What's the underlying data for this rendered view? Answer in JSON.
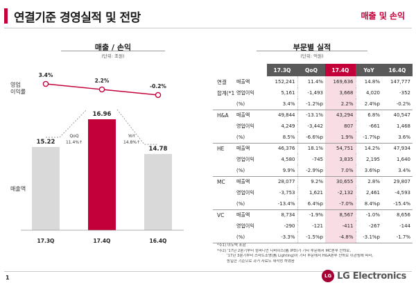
{
  "header": {
    "title": "연결기준 경영실적 및 전망",
    "subtitle": "매출 및 손익"
  },
  "left": {
    "heading": "매출 / 손익",
    "unit": "(단위: 조원)",
    "op_margin_label": "영업\n이익률",
    "revenue_label": "매출액",
    "qoq_label": "QoQ",
    "qoq_value": "11.4%↑",
    "yoy_label": "YoY",
    "yoy_value": "14.8%↑"
  },
  "right": {
    "heading": "부문별 실적",
    "unit": "(단위: 억원)",
    "columns": [
      "17.3Q",
      "QoQ",
      "17.4Q",
      "YoY",
      "16.4Q"
    ],
    "groups": [
      {
        "segment": [
          "연결",
          "합계(*1)"
        ],
        "rows": [
          [
            "매출액",
            "152,241",
            "11.4%",
            "169,636",
            "14.8%",
            "147,777"
          ],
          [
            "영업이익",
            "5,161",
            "-1,493",
            "3,668",
            "4,020",
            "-352"
          ],
          [
            "(%)",
            "3.4%",
            "-1.2%p",
            "2.2%",
            "2.4%p",
            "-0.2%"
          ]
        ]
      },
      {
        "segment": [
          "H&A"
        ],
        "rows": [
          [
            "매출액",
            "49,844",
            "-13.1%",
            "43,294",
            "6.8%",
            "40,547"
          ],
          [
            "영업이익",
            "4,249",
            "-3,442",
            "807",
            "-661",
            "1,468"
          ],
          [
            "(%)",
            "8.5%",
            "-6.6%p",
            "1.9%",
            "-1.7%p",
            "3.6%"
          ]
        ]
      },
      {
        "segment": [
          "HE"
        ],
        "rows": [
          [
            "매출액",
            "46,376",
            "18.1%",
            "54,751",
            "14.2%",
            "47,934"
          ],
          [
            "영업이익",
            "4,580",
            "-745",
            "3,835",
            "2,195",
            "1,640"
          ],
          [
            "(%)",
            "9.9%",
            "-2.9%p",
            "7.0%",
            "3.6%p",
            "3.4%"
          ]
        ]
      },
      {
        "segment": [
          "MC"
        ],
        "rows": [
          [
            "매출액",
            "28,077",
            "9.2%",
            "30,655",
            "2.8%",
            "29,807"
          ],
          [
            "영업이익",
            "-3,753",
            "1,621",
            "-2,132",
            "2,461",
            "-4,593"
          ],
          [
            "(%)",
            "-13.4%",
            "6.4%p",
            "-7.0%",
            "8.4%p",
            "-15.4%"
          ]
        ]
      },
      {
        "segment": [
          "VC"
        ],
        "rows": [
          [
            "매출액",
            "8,734",
            "-1.9%",
            "8,567",
            "-1.0%",
            "8,656"
          ],
          [
            "영업이익",
            "-290",
            "-121",
            "-411",
            "-267",
            "-144"
          ],
          [
            "(%)",
            "-3.3%",
            "-1.5%p",
            "-4.8%",
            "-3.1%p",
            "-1.7%"
          ]
        ]
      }
    ]
  },
  "notes": [
    "*주1) 이노텍 포함",
    "*주2) '17년 2분기부터 컴퍼니언 디바이스(舊 IPD)가 기타 부문에서 MC본부 산하로,",
    "'17년 3분기부터 스마트조명(舊 Lighting)이 기타 부문에서 H&A본부 산하로 이관됨에 따라,",
    "동일한 기준으로 과거 자료도 재작성 하였음"
  ],
  "footer": {
    "page_number": "1",
    "logo_mark": "LG",
    "logo_text": "LG Electronics"
  },
  "colors": {
    "accent": "#c4003a",
    "bar_gray": "#d9d9d9",
    "header_gray": "#595959",
    "highlight": "#f9dde4"
  },
  "chart_data": {
    "type": "bar",
    "categories": [
      "17.3Q",
      "17.4Q",
      "16.4Q"
    ],
    "series": [
      {
        "values": [
          15.22,
          16.96,
          14.78
        ]
      },
      {
        "values": [
          3.4,
          2.2,
          -0.2
        ]
      }
    ],
    "bar_labels": [
      "15.22",
      "16.96",
      "14.78"
    ],
    "line_labels": [
      "3.4%",
      "2.2%",
      "-0.2%"
    ],
    "highlight_index": 1
  }
}
